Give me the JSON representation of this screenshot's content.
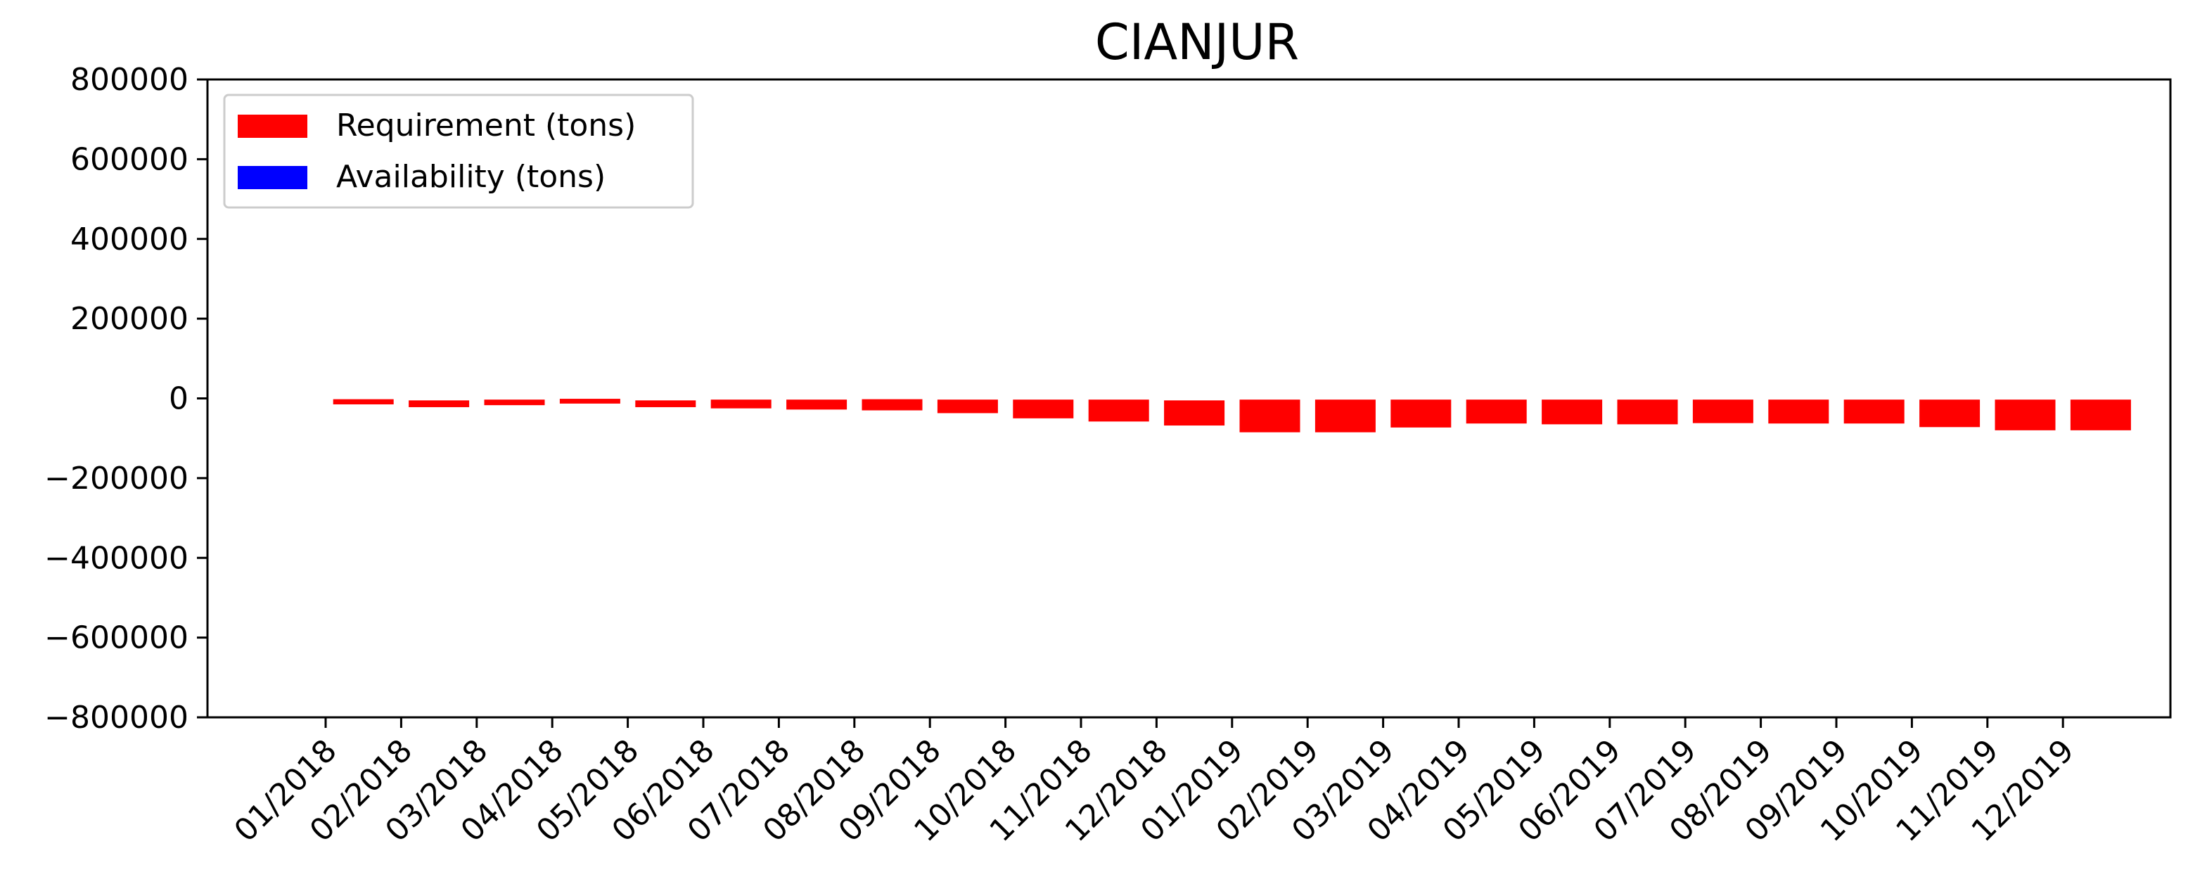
{
  "chart_data": {
    "type": "bar",
    "title": "CIANJUR",
    "xlabel": "",
    "ylabel": "",
    "ylim": [
      -800000,
      800000
    ],
    "yticks": [
      800000,
      600000,
      400000,
      200000,
      0,
      -200000,
      -400000,
      -600000,
      -800000
    ],
    "ytick_labels": [
      "800000",
      "600000",
      "400000",
      "200000",
      "0",
      "−200000",
      "−400000",
      "−600000",
      "−800000"
    ],
    "categories": [
      "01/2018",
      "02/2018",
      "03/2018",
      "04/2018",
      "05/2018",
      "06/2018",
      "07/2018",
      "08/2018",
      "09/2018",
      "10/2018",
      "11/2018",
      "12/2018",
      "01/2019",
      "02/2019",
      "03/2019",
      "04/2019",
      "05/2019",
      "06/2019",
      "07/2019",
      "08/2019",
      "09/2019",
      "10/2019",
      "11/2019",
      "12/2019"
    ],
    "grid": false,
    "legend_position": "top-left",
    "series": [
      {
        "name": "Requirement (tons)",
        "color": "#ff0000",
        "ranges": [
          [
            -15000,
            -2000
          ],
          [
            -22000,
            -5000
          ],
          [
            -17000,
            -3000
          ],
          [
            -13000,
            -1000
          ],
          [
            -22000,
            -5000
          ],
          [
            -25000,
            -3000
          ],
          [
            -28000,
            -3000
          ],
          [
            -30000,
            -2000
          ],
          [
            -37000,
            -3000
          ],
          [
            -50000,
            -3000
          ],
          [
            -58000,
            -3000
          ],
          [
            -68000,
            -5000
          ],
          [
            -85000,
            -3000
          ],
          [
            -85000,
            -3000
          ],
          [
            -73000,
            -3000
          ],
          [
            -63000,
            -3000
          ],
          [
            -65000,
            -3000
          ],
          [
            -65000,
            -3000
          ],
          [
            -62000,
            -3000
          ],
          [
            -63000,
            -3000
          ],
          [
            -63000,
            -3000
          ],
          [
            -72000,
            -3000
          ],
          [
            -80000,
            -3000
          ],
          [
            -80000,
            -3000
          ]
        ]
      },
      {
        "name": "Availability (tons)",
        "color": "#0000ff",
        "ranges": []
      }
    ]
  }
}
